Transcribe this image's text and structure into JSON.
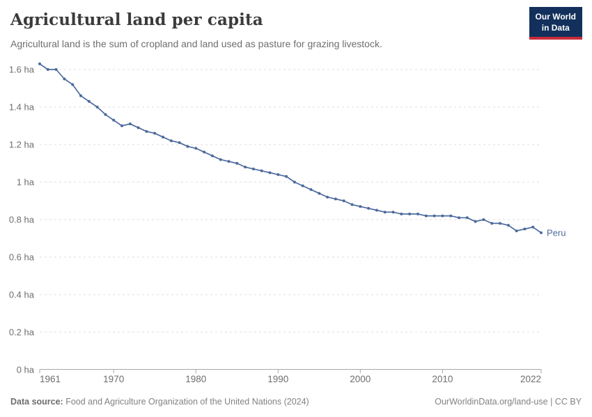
{
  "header": {
    "title": "Agricultural land per capita",
    "subtitle": "Agricultural land is the sum of cropland and land used as pasture for grazing livestock."
  },
  "logo": {
    "line1": "Our World",
    "line2": "in Data",
    "bg_color": "#12305b",
    "accent_color": "#ca2b39"
  },
  "footer": {
    "datasource_label": "Data source:",
    "datasource_value": " Food and Agriculture Organization of the United Nations (2024)",
    "url": "OurWorldinData.org/land-use",
    "license": " | CC BY"
  },
  "chart_data": {
    "type": "line",
    "title": "Agricultural land per capita",
    "entity": "Peru",
    "unit": "ha",
    "end_label": "Peru",
    "grid": "dashed-horizontal",
    "legend_position": "end-of-line",
    "ylim": [
      0,
      1.6
    ],
    "y_ticks": [
      0,
      0.2,
      0.4,
      0.6,
      0.8,
      1,
      1.2,
      1.4,
      1.6
    ],
    "x_ticks": [
      1961,
      1970,
      1980,
      1990,
      2000,
      2010,
      2022
    ],
    "xlabel": "",
    "ylabel": "",
    "x": [
      1961,
      1962,
      1963,
      1964,
      1965,
      1966,
      1967,
      1968,
      1969,
      1970,
      1971,
      1972,
      1973,
      1974,
      1975,
      1976,
      1977,
      1978,
      1979,
      1980,
      1981,
      1982,
      1983,
      1984,
      1985,
      1986,
      1987,
      1988,
      1989,
      1990,
      1991,
      1992,
      1993,
      1994,
      1995,
      1996,
      1997,
      1998,
      1999,
      2000,
      2001,
      2002,
      2003,
      2004,
      2005,
      2006,
      2007,
      2008,
      2009,
      2010,
      2011,
      2012,
      2013,
      2014,
      2015,
      2016,
      2017,
      2018,
      2019,
      2020,
      2021,
      2022
    ],
    "series": [
      {
        "name": "Peru",
        "color": "#4C6A9C",
        "values": [
          1.63,
          1.6,
          1.6,
          1.55,
          1.52,
          1.46,
          1.43,
          1.4,
          1.36,
          1.33,
          1.3,
          1.31,
          1.29,
          1.27,
          1.26,
          1.24,
          1.22,
          1.21,
          1.19,
          1.18,
          1.16,
          1.14,
          1.12,
          1.11,
          1.1,
          1.08,
          1.07,
          1.06,
          1.05,
          1.04,
          1.03,
          1.0,
          0.98,
          0.96,
          0.94,
          0.92,
          0.91,
          0.9,
          0.88,
          0.87,
          0.86,
          0.85,
          0.84,
          0.84,
          0.83,
          0.83,
          0.83,
          0.82,
          0.82,
          0.82,
          0.82,
          0.81,
          0.81,
          0.79,
          0.8,
          0.78,
          0.78,
          0.77,
          0.74,
          0.75,
          0.76,
          0.73
        ]
      }
    ],
    "style": {
      "gridline_color": "#dcdcdc",
      "axis_color": "#a8a8a8",
      "tick_label_color": "#6e6e6e"
    }
  }
}
